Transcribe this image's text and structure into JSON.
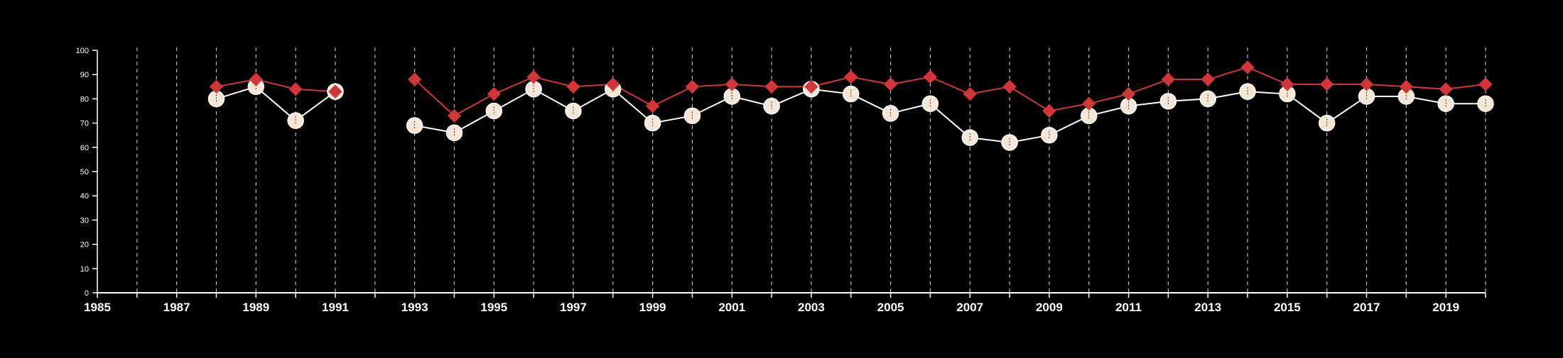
{
  "chart_data": {
    "type": "line",
    "title": "",
    "xlabel": "",
    "ylabel": "",
    "xlim": [
      1985,
      2020
    ],
    "ylim": [
      0,
      100
    ],
    "x_ticks": [
      1985,
      1987,
      1989,
      1991,
      1993,
      1995,
      1997,
      1999,
      2001,
      2003,
      2005,
      2007,
      2009,
      2011,
      2013,
      2015,
      2017,
      2019
    ],
    "y_ticks": [
      0,
      10,
      20,
      30,
      40,
      50,
      60,
      70,
      80,
      90,
      100
    ],
    "grid": "vertical dashed lines at every year",
    "legend": "none",
    "series": [
      {
        "marker": "circle",
        "color": "#ffffff",
        "marker_fill": "#f5e6d6",
        "points": [
          [
            1988,
            80
          ],
          [
            1989,
            85
          ],
          [
            1990,
            71
          ],
          [
            1991,
            83
          ],
          [
            1993,
            69
          ],
          [
            1994,
            66
          ],
          [
            1995,
            75
          ],
          [
            1996,
            84
          ],
          [
            1997,
            75
          ],
          [
            1998,
            84
          ],
          [
            1999,
            70
          ],
          [
            2000,
            73
          ],
          [
            2001,
            81
          ],
          [
            2002,
            77
          ],
          [
            2003,
            84
          ],
          [
            2004,
            82
          ],
          [
            2005,
            74
          ],
          [
            2006,
            78
          ],
          [
            2007,
            64
          ],
          [
            2008,
            62
          ],
          [
            2009,
            65
          ],
          [
            2010,
            73
          ],
          [
            2011,
            77
          ],
          [
            2012,
            79
          ],
          [
            2013,
            80
          ],
          [
            2014,
            83
          ],
          [
            2015,
            82
          ],
          [
            2016,
            70
          ],
          [
            2017,
            81
          ],
          [
            2018,
            81
          ],
          [
            2019,
            78
          ],
          [
            2020,
            78
          ]
        ]
      },
      {
        "marker": "diamond",
        "color": "#d0363a",
        "marker_fill": "#d0363a",
        "points": [
          [
            1988,
            85
          ],
          [
            1989,
            88
          ],
          [
            1990,
            84
          ],
          [
            1991,
            83
          ],
          [
            1993,
            88
          ],
          [
            1994,
            73
          ],
          [
            1995,
            82
          ],
          [
            1996,
            89
          ],
          [
            1997,
            85
          ],
          [
            1998,
            86
          ],
          [
            1999,
            77
          ],
          [
            2000,
            85
          ],
          [
            2001,
            86
          ],
          [
            2002,
            85
          ],
          [
            2003,
            85
          ],
          [
            2004,
            89
          ],
          [
            2005,
            86
          ],
          [
            2006,
            89
          ],
          [
            2007,
            82
          ],
          [
            2008,
            85
          ],
          [
            2009,
            75
          ],
          [
            2010,
            78
          ],
          [
            2011,
            82
          ],
          [
            2012,
            88
          ],
          [
            2013,
            88
          ],
          [
            2014,
            93
          ],
          [
            2015,
            86
          ],
          [
            2016,
            86
          ],
          [
            2017,
            86
          ],
          [
            2018,
            85
          ],
          [
            2019,
            84
          ],
          [
            2020,
            86
          ]
        ]
      }
    ]
  },
  "colors": {
    "background": "#000000",
    "axis": "#ffffff",
    "grid": "#bbbbbb"
  }
}
